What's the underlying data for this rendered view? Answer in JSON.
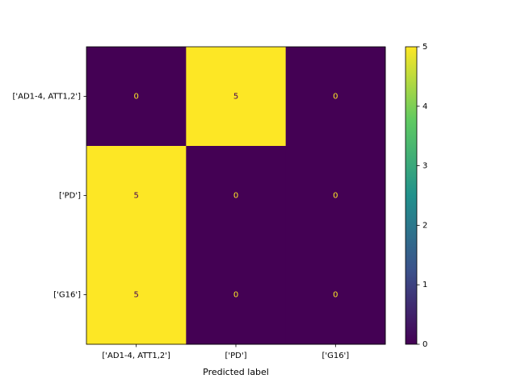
{
  "chart_data": {
    "type": "heatmap",
    "colormap": "viridis",
    "x_categories": [
      "['AD1-4, ATT1,2']",
      "['PD']",
      "['G16']"
    ],
    "y_categories": [
      "['AD1-4, ATT1,2']",
      "['PD']",
      "['G16']"
    ],
    "values": [
      [
        0,
        5,
        0
      ],
      [
        5,
        0,
        0
      ],
      [
        5,
        0,
        0
      ]
    ],
    "xlabel": "Predicted label",
    "zlim": [
      0,
      5
    ],
    "zticks": [
      0,
      1,
      2,
      3,
      4,
      5
    ]
  }
}
